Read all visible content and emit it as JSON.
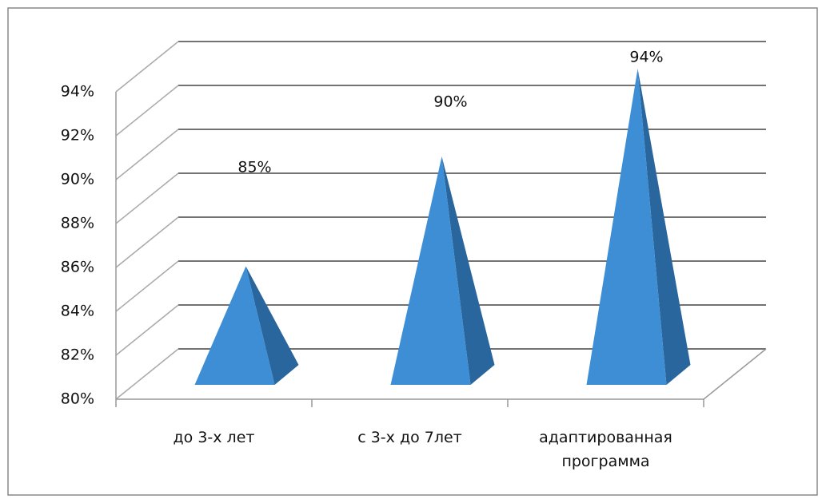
{
  "chart_data": {
    "type": "pyramid",
    "categories": [
      "до 3-х лет",
      "с 3-х до 7лет",
      "адаптированная программа"
    ],
    "values": [
      85,
      90,
      94
    ],
    "value_labels": [
      "85%",
      "90%",
      "94%"
    ],
    "color": "#3d8ed4",
    "ylim": [
      80,
      94
    ],
    "yticks": [
      {
        "value": 80,
        "label": "80%"
      },
      {
        "value": 82,
        "label": "82%"
      },
      {
        "value": 84,
        "label": "84%"
      },
      {
        "value": 86,
        "label": "86%"
      },
      {
        "value": 88,
        "label": "88%"
      },
      {
        "value": 90,
        "label": "90%"
      },
      {
        "value": 92,
        "label": "92%"
      },
      {
        "value": 94,
        "label": "94%"
      }
    ],
    "grid": true
  }
}
